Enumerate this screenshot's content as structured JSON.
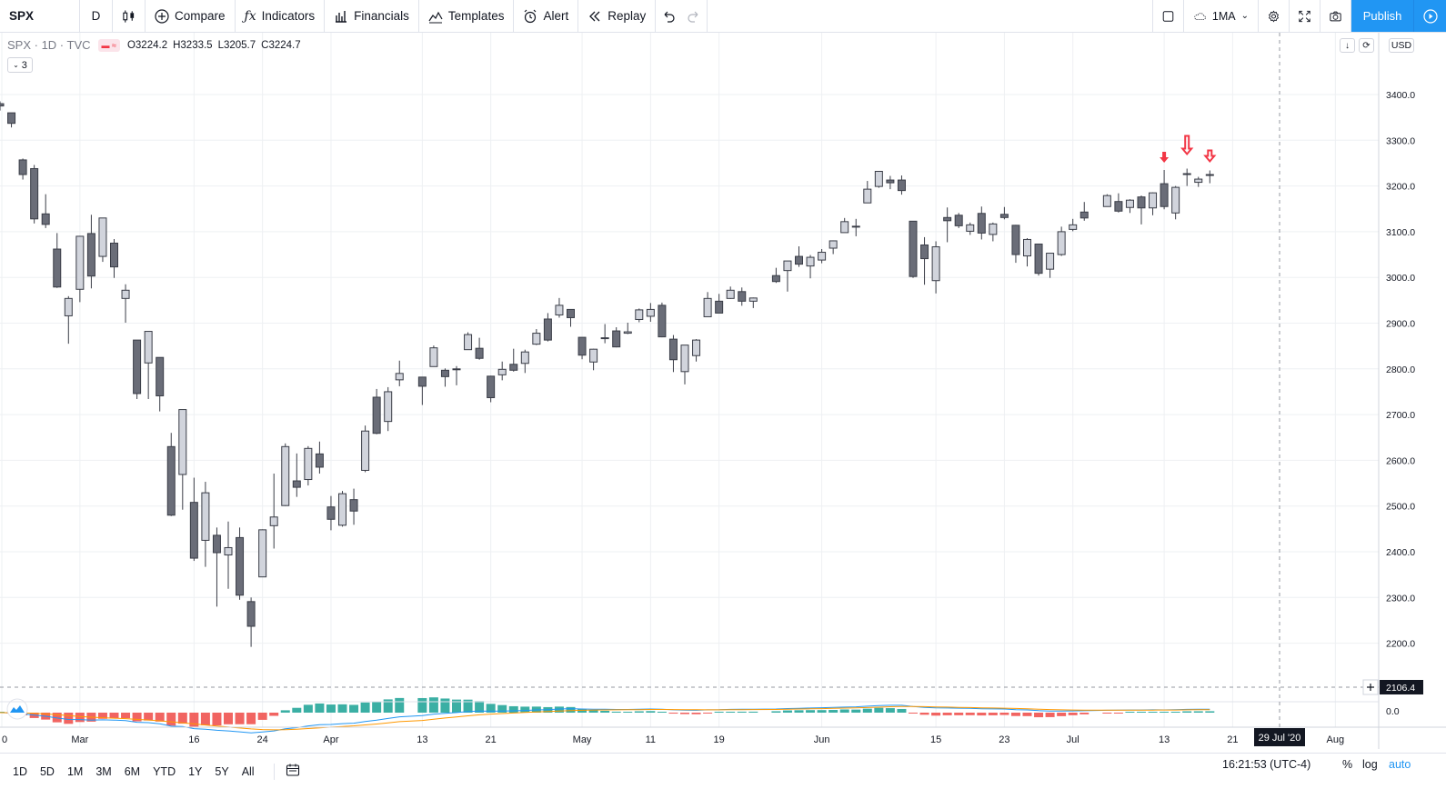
{
  "toolbar": {
    "symbol": "SPX",
    "interval": "D",
    "compare": "Compare",
    "indicators": "Indicators",
    "financials": "Financials",
    "templates": "Templates",
    "alert": "Alert",
    "replay": "Replay",
    "layout_name": "1MA",
    "publish": "Publish"
  },
  "legend": {
    "title": "SPX · 1D · TVC",
    "open": "O3224.2",
    "high": "H3233.5",
    "low": "L3205.7",
    "close": "C3224.7",
    "indicator_count": "3"
  },
  "price_axis": {
    "currency": "USD",
    "ticks": [
      "3400.0",
      "3300.0",
      "3200.0",
      "3100.0",
      "3000.0",
      "2900.0",
      "2800.0",
      "2700.0",
      "2600.0",
      "2500.0",
      "2400.0",
      "2300.0",
      "2200.0"
    ],
    "crosshair_label": "2106.4",
    "osc_zero": "0.0"
  },
  "time_axis": {
    "labels": [
      "0",
      "Mar",
      "16",
      "24",
      "Apr",
      "13",
      "21",
      "May",
      "11",
      "19",
      "Jun",
      "15",
      "23",
      "Jul",
      "13",
      "21",
      "Aug"
    ],
    "crosshair_date": "29 Jul '20"
  },
  "bottom": {
    "ranges": [
      "1D",
      "5D",
      "1M",
      "3M",
      "6M",
      "YTD",
      "1Y",
      "5Y",
      "All"
    ],
    "clock": "16:21:53 (UTC-4)",
    "percent": "%",
    "log": "log",
    "auto": "auto"
  },
  "colors": {
    "bull": "#d1d4dc",
    "bear": "#6a6d78",
    "outline": "#3a3d47",
    "marker": "#f23645",
    "accent": "#2196f3"
  },
  "chart_data": {
    "type": "candlestick",
    "symbol": "SPX",
    "interval": "1D",
    "ylim": [
      2080,
      3470
    ],
    "candles": [
      {
        "date": "2020-02-20",
        "o": 3380,
        "h": 3385,
        "l": 3365,
        "c": 3375
      },
      {
        "date": "2020-02-21",
        "o": 3360,
        "h": 3360,
        "l": 3328,
        "c": 3337
      },
      {
        "date": "2020-02-24",
        "o": 3257,
        "h": 3260,
        "l": 3214,
        "c": 3225
      },
      {
        "date": "2020-02-25",
        "o": 3238,
        "h": 3246,
        "l": 3118,
        "c": 3128
      },
      {
        "date": "2020-02-26",
        "o": 3139,
        "h": 3182,
        "l": 3108,
        "c": 3116
      },
      {
        "date": "2020-02-27",
        "o": 3062,
        "h": 3097,
        "l": 2977,
        "c": 2979
      },
      {
        "date": "2020-02-28",
        "o": 2916,
        "h": 2959,
        "l": 2855,
        "c": 2954
      },
      {
        "date": "2020-03-02",
        "o": 2974,
        "h": 3091,
        "l": 2946,
        "c": 3090
      },
      {
        "date": "2020-03-03",
        "o": 3096,
        "h": 3137,
        "l": 2976,
        "c": 3003
      },
      {
        "date": "2020-03-04",
        "o": 3046,
        "h": 3130,
        "l": 3034,
        "c": 3130
      },
      {
        "date": "2020-03-05",
        "o": 3075,
        "h": 3084,
        "l": 2999,
        "c": 3023
      },
      {
        "date": "2020-03-06",
        "o": 2954,
        "h": 2985,
        "l": 2901,
        "c": 2972
      },
      {
        "date": "2020-03-09",
        "o": 2863,
        "h": 2863,
        "l": 2734,
        "c": 2746
      },
      {
        "date": "2020-03-10",
        "o": 2813,
        "h": 2882,
        "l": 2734,
        "c": 2882
      },
      {
        "date": "2020-03-11",
        "o": 2825,
        "h": 2825,
        "l": 2707,
        "c": 2741
      },
      {
        "date": "2020-03-12",
        "o": 2630,
        "h": 2660,
        "l": 2478,
        "c": 2480
      },
      {
        "date": "2020-03-13",
        "o": 2569,
        "h": 2711,
        "l": 2492,
        "c": 2711
      },
      {
        "date": "2020-03-16",
        "o": 2508,
        "h": 2562,
        "l": 2380,
        "c": 2386
      },
      {
        "date": "2020-03-17",
        "o": 2425,
        "h": 2553,
        "l": 2367,
        "c": 2529
      },
      {
        "date": "2020-03-18",
        "o": 2436,
        "h": 2453,
        "l": 2280,
        "c": 2398
      },
      {
        "date": "2020-03-19",
        "o": 2393,
        "h": 2466,
        "l": 2319,
        "c": 2409
      },
      {
        "date": "2020-03-20",
        "o": 2431,
        "h": 2453,
        "l": 2295,
        "c": 2305
      },
      {
        "date": "2020-03-23",
        "o": 2291,
        "h": 2300,
        "l": 2192,
        "c": 2237
      },
      {
        "date": "2020-03-24",
        "o": 2345,
        "h": 2449,
        "l": 2345,
        "c": 2448
      },
      {
        "date": "2020-03-25",
        "o": 2457,
        "h": 2571,
        "l": 2407,
        "c": 2476
      },
      {
        "date": "2020-03-26",
        "o": 2501,
        "h": 2637,
        "l": 2500,
        "c": 2630
      },
      {
        "date": "2020-03-27",
        "o": 2555,
        "h": 2615,
        "l": 2520,
        "c": 2541
      },
      {
        "date": "2020-03-30",
        "o": 2558,
        "h": 2631,
        "l": 2545,
        "c": 2626
      },
      {
        "date": "2020-03-31",
        "o": 2614,
        "h": 2641,
        "l": 2571,
        "c": 2585
      },
      {
        "date": "2020-04-01",
        "o": 2498,
        "h": 2522,
        "l": 2447,
        "c": 2471
      },
      {
        "date": "2020-04-02",
        "o": 2458,
        "h": 2533,
        "l": 2455,
        "c": 2527
      },
      {
        "date": "2020-04-03",
        "o": 2514,
        "h": 2538,
        "l": 2459,
        "c": 2489
      },
      {
        "date": "2020-04-06",
        "o": 2578,
        "h": 2676,
        "l": 2574,
        "c": 2664
      },
      {
        "date": "2020-04-07",
        "o": 2738,
        "h": 2756,
        "l": 2657,
        "c": 2659
      },
      {
        "date": "2020-04-08",
        "o": 2685,
        "h": 2760,
        "l": 2664,
        "c": 2750
      },
      {
        "date": "2020-04-09",
        "o": 2776,
        "h": 2818,
        "l": 2762,
        "c": 2790
      },
      {
        "date": "2020-04-13",
        "o": 2782,
        "h": 2782,
        "l": 2721,
        "c": 2762
      },
      {
        "date": "2020-04-14",
        "o": 2805,
        "h": 2851,
        "l": 2805,
        "c": 2846
      },
      {
        "date": "2020-04-15",
        "o": 2797,
        "h": 2801,
        "l": 2761,
        "c": 2783
      },
      {
        "date": "2020-04-16",
        "o": 2800,
        "h": 2806,
        "l": 2764,
        "c": 2800
      },
      {
        "date": "2020-04-17",
        "o": 2842,
        "h": 2880,
        "l": 2842,
        "c": 2875
      },
      {
        "date": "2020-04-20",
        "o": 2845,
        "h": 2868,
        "l": 2820,
        "c": 2823
      },
      {
        "date": "2020-04-21",
        "o": 2784,
        "h": 2785,
        "l": 2727,
        "c": 2737
      },
      {
        "date": "2020-04-22",
        "o": 2787,
        "h": 2816,
        "l": 2775,
        "c": 2799
      },
      {
        "date": "2020-04-23",
        "o": 2810,
        "h": 2844,
        "l": 2794,
        "c": 2797
      },
      {
        "date": "2020-04-24",
        "o": 2812,
        "h": 2842,
        "l": 2791,
        "c": 2837
      },
      {
        "date": "2020-04-27",
        "o": 2854,
        "h": 2887,
        "l": 2852,
        "c": 2878
      },
      {
        "date": "2020-04-28",
        "o": 2909,
        "h": 2922,
        "l": 2860,
        "c": 2863
      },
      {
        "date": "2020-04-29",
        "o": 2918,
        "h": 2955,
        "l": 2912,
        "c": 2939
      },
      {
        "date": "2020-04-30",
        "o": 2930,
        "h": 2930,
        "l": 2892,
        "c": 2912
      },
      {
        "date": "2020-05-01",
        "o": 2869,
        "h": 2869,
        "l": 2821,
        "c": 2830
      },
      {
        "date": "2020-05-04",
        "o": 2815,
        "h": 2844,
        "l": 2797,
        "c": 2843
      },
      {
        "date": "2020-05-05",
        "o": 2868,
        "h": 2898,
        "l": 2856,
        "c": 2868
      },
      {
        "date": "2020-05-06",
        "o": 2883,
        "h": 2891,
        "l": 2847,
        "c": 2848
      },
      {
        "date": "2020-05-07",
        "o": 2878,
        "h": 2901,
        "l": 2876,
        "c": 2881
      },
      {
        "date": "2020-05-08",
        "o": 2908,
        "h": 2932,
        "l": 2902,
        "c": 2929
      },
      {
        "date": "2020-05-11",
        "o": 2915,
        "h": 2944,
        "l": 2903,
        "c": 2930
      },
      {
        "date": "2020-05-12",
        "o": 2939,
        "h": 2945,
        "l": 2869,
        "c": 2870
      },
      {
        "date": "2020-05-13",
        "o": 2865,
        "h": 2874,
        "l": 2793,
        "c": 2820
      },
      {
        "date": "2020-05-14",
        "o": 2794,
        "h": 2852,
        "l": 2766,
        "c": 2852
      },
      {
        "date": "2020-05-15",
        "o": 2829,
        "h": 2865,
        "l": 2816,
        "c": 2863
      },
      {
        "date": "2020-05-18",
        "o": 2914,
        "h": 2968,
        "l": 2914,
        "c": 2954
      },
      {
        "date": "2020-05-19",
        "o": 2948,
        "h": 2964,
        "l": 2922,
        "c": 2922
      },
      {
        "date": "2020-05-20",
        "o": 2954,
        "h": 2980,
        "l": 2953,
        "c": 2972
      },
      {
        "date": "2020-05-21",
        "o": 2969,
        "h": 2978,
        "l": 2938,
        "c": 2948
      },
      {
        "date": "2020-05-22",
        "o": 2948,
        "h": 2956,
        "l": 2933,
        "c": 2955
      },
      {
        "date": "2020-05-26",
        "o": 3004,
        "h": 3021,
        "l": 2988,
        "c": 2991
      },
      {
        "date": "2020-05-27",
        "o": 3015,
        "h": 3036,
        "l": 2969,
        "c": 3036
      },
      {
        "date": "2020-05-28",
        "o": 3046,
        "h": 3068,
        "l": 3023,
        "c": 3029
      },
      {
        "date": "2020-05-29",
        "o": 3025,
        "h": 3049,
        "l": 2998,
        "c": 3044
      },
      {
        "date": "2020-06-01",
        "o": 3038,
        "h": 3062,
        "l": 3031,
        "c": 3055
      },
      {
        "date": "2020-06-02",
        "o": 3064,
        "h": 3081,
        "l": 3051,
        "c": 3080
      },
      {
        "date": "2020-06-03",
        "o": 3098,
        "h": 3130,
        "l": 3098,
        "c": 3122
      },
      {
        "date": "2020-06-04",
        "o": 3111,
        "h": 3128,
        "l": 3090,
        "c": 3112
      },
      {
        "date": "2020-06-05",
        "o": 3163,
        "h": 3211,
        "l": 3163,
        "c": 3193
      },
      {
        "date": "2020-06-08",
        "o": 3199,
        "h": 3233,
        "l": 3196,
        "c": 3232
      },
      {
        "date": "2020-06-09",
        "o": 3213,
        "h": 3222,
        "l": 3193,
        "c": 3207
      },
      {
        "date": "2020-06-10",
        "o": 3213,
        "h": 3223,
        "l": 3181,
        "c": 3190
      },
      {
        "date": "2020-06-11",
        "o": 3123,
        "h": 3123,
        "l": 2999,
        "c": 3002
      },
      {
        "date": "2020-06-12",
        "o": 3071,
        "h": 3088,
        "l": 2984,
        "c": 3041
      },
      {
        "date": "2020-06-15",
        "o": 2993,
        "h": 3079,
        "l": 2965,
        "c": 3067
      },
      {
        "date": "2020-06-16",
        "o": 3131,
        "h": 3153,
        "l": 3077,
        "c": 3124
      },
      {
        "date": "2020-06-17",
        "o": 3136,
        "h": 3141,
        "l": 3108,
        "c": 3113
      },
      {
        "date": "2020-06-18",
        "o": 3101,
        "h": 3120,
        "l": 3093,
        "c": 3115
      },
      {
        "date": "2020-06-19",
        "o": 3140,
        "h": 3155,
        "l": 3083,
        "c": 3097
      },
      {
        "date": "2020-06-22",
        "o": 3094,
        "h": 3120,
        "l": 3079,
        "c": 3117
      },
      {
        "date": "2020-06-23",
        "o": 3138,
        "h": 3154,
        "l": 3127,
        "c": 3131
      },
      {
        "date": "2020-06-24",
        "o": 3114,
        "h": 3115,
        "l": 3032,
        "c": 3050
      },
      {
        "date": "2020-06-25",
        "o": 3047,
        "h": 3086,
        "l": 3024,
        "c": 3083
      },
      {
        "date": "2020-06-26",
        "o": 3073,
        "h": 3073,
        "l": 3004,
        "c": 3009
      },
      {
        "date": "2020-06-29",
        "o": 3018,
        "h": 3053,
        "l": 2999,
        "c": 3053
      },
      {
        "date": "2020-06-30",
        "o": 3050,
        "h": 3111,
        "l": 3047,
        "c": 3100
      },
      {
        "date": "2020-07-01",
        "o": 3105,
        "h": 3128,
        "l": 3101,
        "c": 3115
      },
      {
        "date": "2020-07-02",
        "o": 3143,
        "h": 3165,
        "l": 3124,
        "c": 3130
      },
      {
        "date": "2020-07-06",
        "o": 3155,
        "h": 3182,
        "l": 3155,
        "c": 3179
      },
      {
        "date": "2020-07-07",
        "o": 3166,
        "h": 3184,
        "l": 3142,
        "c": 3145
      },
      {
        "date": "2020-07-08",
        "o": 3153,
        "h": 3171,
        "l": 3141,
        "c": 3169
      },
      {
        "date": "2020-07-09",
        "o": 3176,
        "h": 3179,
        "l": 3116,
        "c": 3152
      },
      {
        "date": "2020-07-10",
        "o": 3152,
        "h": 3186,
        "l": 3136,
        "c": 3185
      },
      {
        "date": "2020-07-13",
        "o": 3205,
        "h": 3235,
        "l": 3149,
        "c": 3155
      },
      {
        "date": "2020-07-14",
        "o": 3141,
        "h": 3200,
        "l": 3127,
        "c": 3197
      },
      {
        "date": "2020-07-15",
        "o": 3225,
        "h": 3238,
        "l": 3200,
        "c": 3227
      },
      {
        "date": "2020-07-16",
        "o": 3208,
        "h": 3220,
        "l": 3198,
        "c": 3215
      },
      {
        "date": "2020-07-17",
        "o": 3224,
        "h": 3234,
        "l": 3206,
        "c": 3225
      }
    ],
    "markers": [
      {
        "date": "2020-07-13",
        "shape": "arrow-down",
        "style": "filled"
      },
      {
        "date": "2020-07-15",
        "shape": "arrow-down",
        "style": "outlined-long"
      },
      {
        "date": "2020-07-17",
        "shape": "arrow-down",
        "style": "outlined"
      }
    ]
  }
}
